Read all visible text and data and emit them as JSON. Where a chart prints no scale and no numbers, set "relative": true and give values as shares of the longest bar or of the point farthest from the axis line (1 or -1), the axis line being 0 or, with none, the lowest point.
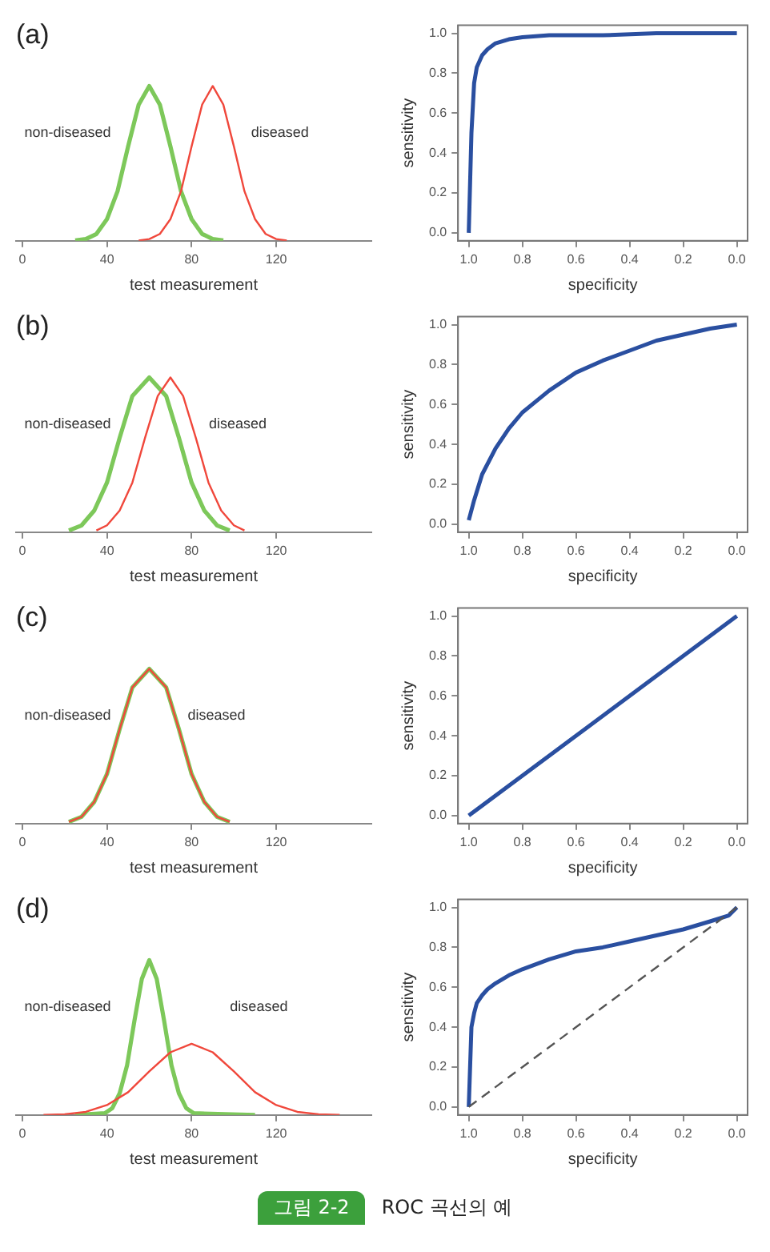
{
  "chart_data": [
    {
      "type": "line",
      "title": "(a)",
      "xlabel": "test measurement",
      "relative": true,
      "xlim": [
        -3,
        165
      ],
      "xticks": [
        0,
        40,
        80,
        120
      ],
      "tick_labels": "x",
      "legend": false,
      "series": [
        {
          "name": "non-diseased",
          "color": "#7dc85a",
          "x": [
            25,
            30,
            35,
            40,
            45,
            50,
            55,
            60,
            65,
            70,
            75,
            80,
            85,
            90,
            95
          ],
          "values": [
            0.002,
            0.011,
            0.044,
            0.14,
            0.32,
            0.61,
            0.88,
            1,
            0.88,
            0.61,
            0.32,
            0.14,
            0.044,
            0.011,
            0.002
          ]
        },
        {
          "name": "diseased",
          "color": "#f0483c",
          "x": [
            55,
            60,
            65,
            70,
            75,
            80,
            85,
            90,
            95,
            100,
            105,
            110,
            115,
            120,
            125
          ],
          "values": [
            0.002,
            0.011,
            0.044,
            0.14,
            0.32,
            0.61,
            0.88,
            1,
            0.88,
            0.61,
            0.32,
            0.14,
            0.044,
            0.011,
            0.002
          ]
        }
      ]
    },
    {
      "type": "line",
      "xlabel": "specificity",
      "ylabel": "sensitivity",
      "xlim": [
        1.04,
        -0.04
      ],
      "ylim": [
        -0.04,
        1.04
      ],
      "xticks": [
        {
          "value": 1,
          "label": "1.0"
        },
        {
          "value": 0.8,
          "label": "0.8"
        },
        {
          "value": 0.6,
          "label": "0.6"
        },
        {
          "value": 0.4,
          "label": "0.4"
        },
        {
          "value": 0.2,
          "label": "0.2"
        },
        {
          "value": 0,
          "label": "0.0"
        }
      ],
      "yticks": [
        {
          "value": 0,
          "label": "0.0"
        },
        {
          "value": 0.2,
          "label": "0.2"
        },
        {
          "value": 0.4,
          "label": "0.4"
        },
        {
          "value": 0.6,
          "label": "0.6"
        },
        {
          "value": 0.8,
          "label": "0.8"
        },
        {
          "value": 1,
          "label": "1.0"
        }
      ],
      "legend": false,
      "series": [
        {
          "color": "#2a4fa0",
          "x": [
            1,
            0.99,
            0.98,
            0.97,
            0.95,
            0.93,
            0.9,
            0.85,
            0.8,
            0.7,
            0.5,
            0.3,
            0
          ],
          "values": [
            0,
            0.5,
            0.75,
            0.83,
            0.89,
            0.92,
            0.95,
            0.97,
            0.98,
            0.99,
            0.99,
            1,
            1
          ]
        }
      ]
    },
    {
      "type": "line",
      "title": "(b)",
      "xlabel": "test measurement",
      "relative": true,
      "xlim": [
        -3,
        165
      ],
      "xticks": [
        0,
        40,
        80,
        120
      ],
      "tick_labels": "x",
      "legend": false,
      "series": [
        {
          "name": "non-diseased",
          "color": "#7dc85a",
          "x": [
            22,
            28,
            34,
            40,
            46,
            52,
            60,
            68,
            74,
            80,
            86,
            92,
            98
          ],
          "values": [
            0.011,
            0.044,
            0.14,
            0.32,
            0.61,
            0.88,
            1,
            0.88,
            0.61,
            0.32,
            0.14,
            0.044,
            0.011
          ]
        },
        {
          "name": "diseased",
          "color": "#f0483c",
          "x": [
            35,
            40,
            46,
            52,
            58,
            64,
            70,
            76,
            82,
            88,
            94,
            100,
            105
          ],
          "values": [
            0.011,
            0.044,
            0.14,
            0.32,
            0.61,
            0.88,
            1,
            0.88,
            0.61,
            0.32,
            0.14,
            0.044,
            0.011
          ]
        }
      ]
    },
    {
      "type": "line",
      "xlabel": "specificity",
      "ylabel": "sensitivity",
      "xlim": [
        1.04,
        -0.04
      ],
      "ylim": [
        -0.04,
        1.04
      ],
      "xticks": [
        {
          "value": 1,
          "label": "1.0"
        },
        {
          "value": 0.8,
          "label": "0.8"
        },
        {
          "value": 0.6,
          "label": "0.6"
        },
        {
          "value": 0.4,
          "label": "0.4"
        },
        {
          "value": 0.2,
          "label": "0.2"
        },
        {
          "value": 0,
          "label": "0.0"
        }
      ],
      "yticks": [
        {
          "value": 0,
          "label": "0.0"
        },
        {
          "value": 0.2,
          "label": "0.2"
        },
        {
          "value": 0.4,
          "label": "0.4"
        },
        {
          "value": 0.6,
          "label": "0.6"
        },
        {
          "value": 0.8,
          "label": "0.8"
        },
        {
          "value": 1,
          "label": "1.0"
        }
      ],
      "legend": false,
      "series": [
        {
          "color": "#2a4fa0",
          "x": [
            1,
            0.98,
            0.95,
            0.9,
            0.85,
            0.8,
            0.7,
            0.6,
            0.5,
            0.4,
            0.3,
            0.2,
            0.1,
            0
          ],
          "values": [
            0.02,
            0.12,
            0.25,
            0.38,
            0.48,
            0.56,
            0.67,
            0.76,
            0.82,
            0.87,
            0.92,
            0.95,
            0.98,
            1
          ]
        }
      ]
    },
    {
      "type": "line",
      "title": "(c)",
      "xlabel": "test measurement",
      "relative": true,
      "xlim": [
        -3,
        165
      ],
      "xticks": [
        0,
        40,
        80,
        120
      ],
      "tick_labels": "x",
      "legend": false,
      "series": [
        {
          "name": "non-diseased",
          "color": "#7dc85a",
          "x": [
            22,
            28,
            34,
            40,
            46,
            52,
            60,
            68,
            74,
            80,
            86,
            92,
            98
          ],
          "values": [
            0.011,
            0.044,
            0.14,
            0.32,
            0.61,
            0.88,
            1,
            0.88,
            0.61,
            0.32,
            0.14,
            0.044,
            0.011
          ]
        },
        {
          "name": "diseased",
          "color": "#f0483c",
          "x": [
            22,
            28,
            34,
            40,
            46,
            52,
            60,
            68,
            74,
            80,
            86,
            92,
            98
          ],
          "values": [
            0.011,
            0.044,
            0.14,
            0.32,
            0.61,
            0.88,
            1,
            0.88,
            0.61,
            0.32,
            0.14,
            0.044,
            0.011
          ]
        }
      ]
    },
    {
      "type": "line",
      "xlabel": "specificity",
      "ylabel": "sensitivity",
      "xlim": [
        1.04,
        -0.04
      ],
      "ylim": [
        -0.04,
        1.04
      ],
      "xticks": [
        {
          "value": 1,
          "label": "1.0"
        },
        {
          "value": 0.8,
          "label": "0.8"
        },
        {
          "value": 0.6,
          "label": "0.6"
        },
        {
          "value": 0.4,
          "label": "0.4"
        },
        {
          "value": 0.2,
          "label": "0.2"
        },
        {
          "value": 0,
          "label": "0.0"
        }
      ],
      "yticks": [
        {
          "value": 0,
          "label": "0.0"
        },
        {
          "value": 0.2,
          "label": "0.2"
        },
        {
          "value": 0.4,
          "label": "0.4"
        },
        {
          "value": 0.6,
          "label": "0.6"
        },
        {
          "value": 0.8,
          "label": "0.8"
        },
        {
          "value": 1,
          "label": "1.0"
        }
      ],
      "legend": false,
      "series": [
        {
          "color": "#2a4fa0",
          "x": [
            1,
            0.5,
            0
          ],
          "values": [
            0,
            0.5,
            1
          ]
        }
      ]
    },
    {
      "type": "line",
      "title": "(d)",
      "xlabel": "test measurement",
      "relative": true,
      "xlim": [
        -3,
        165
      ],
      "xticks": [
        0,
        40,
        80,
        120
      ],
      "tick_labels": "x",
      "legend": false,
      "series": [
        {
          "name": "non-diseased",
          "color": "#7dc85a",
          "x": [
            25,
            39,
            42.5,
            46,
            49.5,
            53,
            56.5,
            60,
            63.5,
            67,
            70.5,
            74,
            77.5,
            81,
            110
          ],
          "values": [
            0,
            0.011,
            0.044,
            0.14,
            0.32,
            0.61,
            0.88,
            1,
            0.88,
            0.61,
            0.32,
            0.14,
            0.044,
            0.011,
            0
          ]
        },
        {
          "name": "diseased",
          "color": "#f0483c",
          "x": [
            10,
            20,
            30,
            40,
            50,
            60,
            70,
            80,
            90,
            100,
            110,
            120,
            130,
            140,
            150
          ],
          "values": [
            0.001,
            0.005,
            0.02,
            0.064,
            0.147,
            0.281,
            0.405,
            0.46,
            0.405,
            0.281,
            0.147,
            0.064,
            0.02,
            0.005,
            0.001
          ]
        }
      ]
    },
    {
      "type": "line",
      "xlabel": "specificity",
      "ylabel": "sensitivity",
      "xlim": [
        1.04,
        -0.04
      ],
      "ylim": [
        -0.04,
        1.04
      ],
      "xticks": [
        {
          "value": 1,
          "label": "1.0"
        },
        {
          "value": 0.8,
          "label": "0.8"
        },
        {
          "value": 0.6,
          "label": "0.6"
        },
        {
          "value": 0.4,
          "label": "0.4"
        },
        {
          "value": 0.2,
          "label": "0.2"
        },
        {
          "value": 0,
          "label": "0.0"
        }
      ],
      "yticks": [
        {
          "value": 0,
          "label": "0.0"
        },
        {
          "value": 0.2,
          "label": "0.2"
        },
        {
          "value": 0.4,
          "label": "0.4"
        },
        {
          "value": 0.6,
          "label": "0.6"
        },
        {
          "value": 0.8,
          "label": "0.8"
        },
        {
          "value": 1,
          "label": "1.0"
        }
      ],
      "legend": false,
      "annotations": [
        "그림 2-2",
        "ROC 곡선의 예"
      ],
      "series": [
        {
          "color": "#2a4fa0",
          "x": [
            1,
            0.99,
            0.98,
            0.97,
            0.95,
            0.93,
            0.9,
            0.85,
            0.8,
            0.7,
            0.6,
            0.5,
            0.4,
            0.3,
            0.2,
            0.1,
            0.03,
            0
          ],
          "values": [
            0,
            0.4,
            0.47,
            0.52,
            0.56,
            0.59,
            0.62,
            0.66,
            0.69,
            0.74,
            0.78,
            0.8,
            0.83,
            0.86,
            0.89,
            0.93,
            0.96,
            1
          ]
        },
        {
          "type": "line",
          "line_style": "dashed",
          "color": "#555555",
          "x": [
            1,
            0
          ],
          "values": [
            0,
            1
          ]
        }
      ]
    }
  ]
}
